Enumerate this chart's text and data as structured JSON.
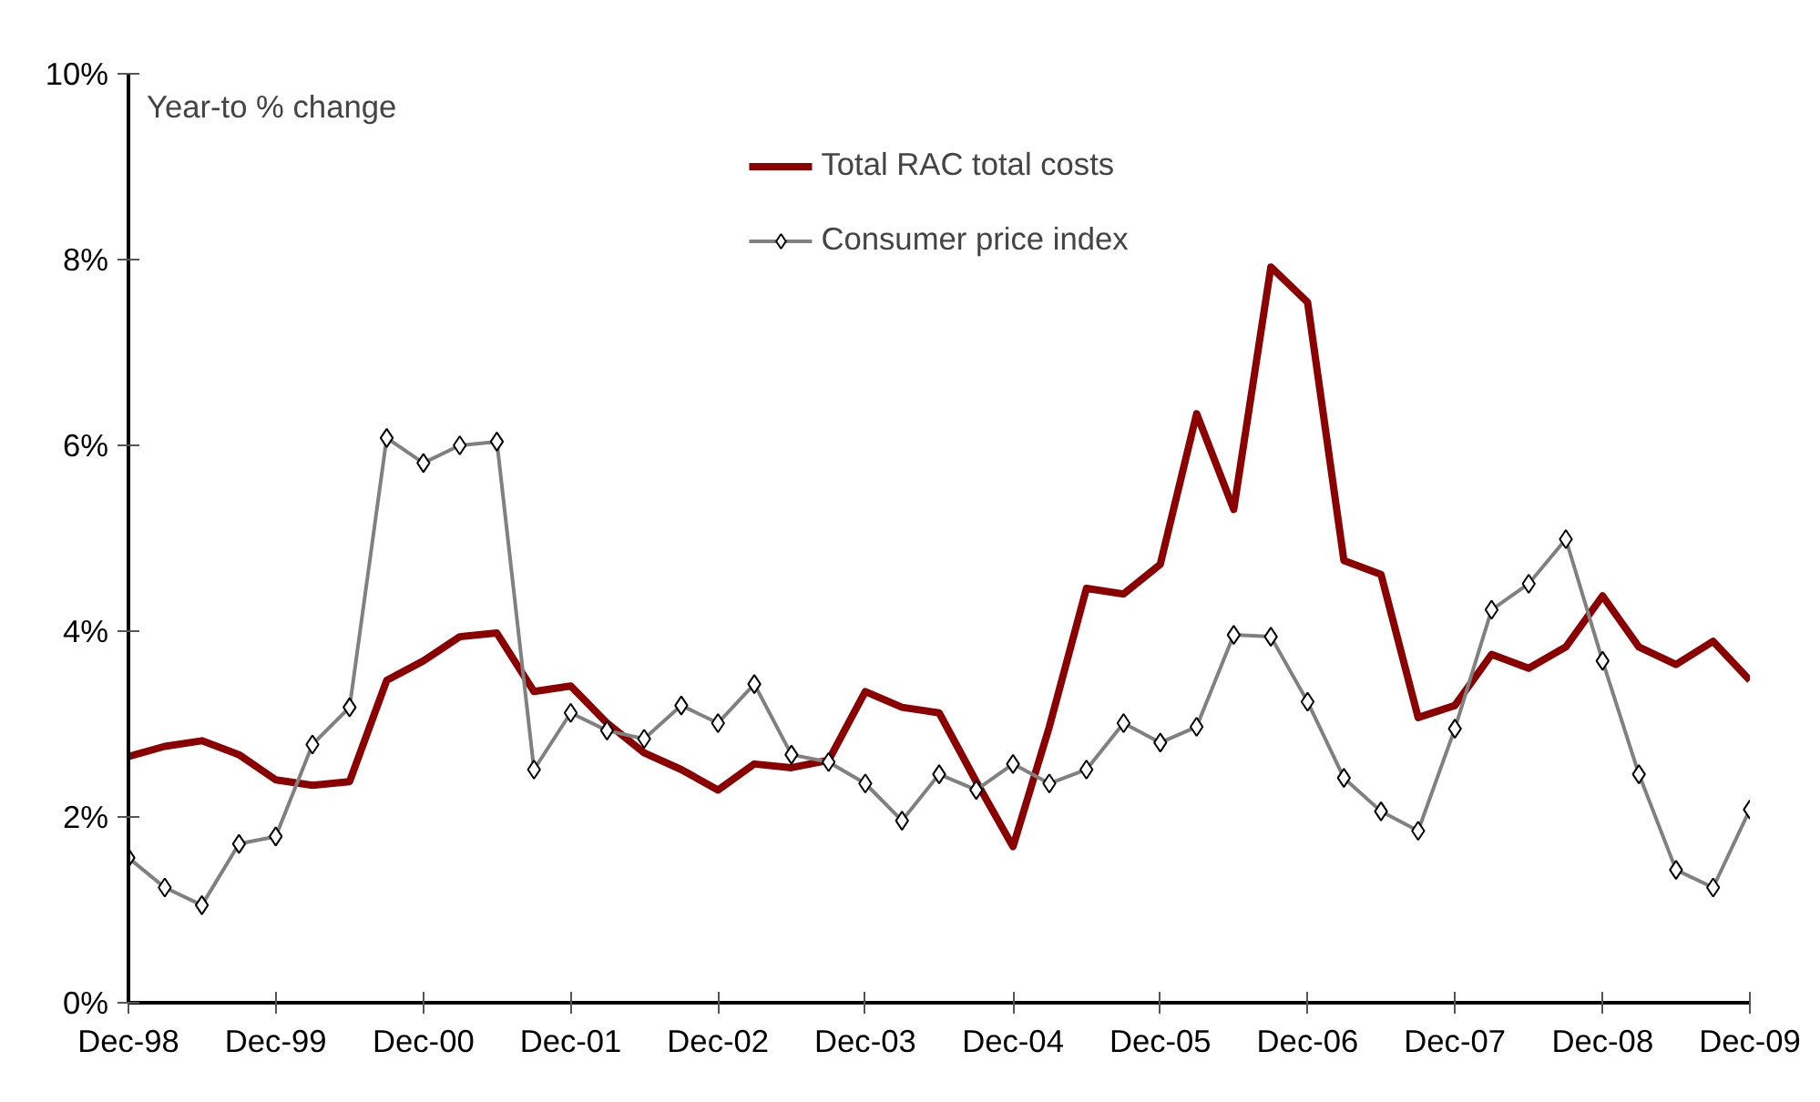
{
  "chart_data": {
    "type": "line",
    "ylabel": "Year-to % change",
    "x": [
      "1998-12",
      "1999-03",
      "1999-06",
      "1999-09",
      "1999-12",
      "2000-03",
      "2000-06",
      "2000-09",
      "2000-12",
      "2001-03",
      "2001-06",
      "2001-09",
      "2001-12",
      "2002-03",
      "2002-06",
      "2002-09",
      "2002-12",
      "2003-03",
      "2003-06",
      "2003-09",
      "2003-12",
      "2004-03",
      "2004-06",
      "2004-09",
      "2004-12",
      "2005-03",
      "2005-06",
      "2005-09",
      "2005-12",
      "2006-03",
      "2006-06",
      "2006-09",
      "2006-12",
      "2007-03",
      "2007-06",
      "2007-09",
      "2007-12",
      "2008-03",
      "2008-06",
      "2008-09",
      "2008-12",
      "2009-03",
      "2009-06",
      "2009-09",
      "2009-12"
    ],
    "series": [
      {
        "name": "Total RAC total costs",
        "color": "#8b0000",
        "marker": "none",
        "values": [
          2.65,
          2.76,
          2.82,
          2.67,
          2.4,
          2.34,
          2.38,
          3.47,
          3.68,
          3.94,
          3.98,
          3.35,
          3.41,
          3.01,
          2.69,
          2.51,
          2.29,
          2.57,
          2.53,
          2.61,
          3.35,
          3.18,
          3.12,
          2.38,
          1.68,
          2.97,
          4.46,
          4.4,
          4.72,
          6.34,
          5.31,
          7.92,
          7.54,
          4.76,
          4.61,
          3.07,
          3.2,
          3.75,
          3.6,
          3.83,
          4.38,
          3.83,
          3.64,
          3.89,
          3.47
        ]
      },
      {
        "name": "Consumer price index",
        "color": "#808080",
        "marker": "diamond",
        "values": [
          1.56,
          1.24,
          1.05,
          1.71,
          1.79,
          2.78,
          3.18,
          6.08,
          5.81,
          6.0,
          6.04,
          2.51,
          3.12,
          2.93,
          2.84,
          3.2,
          3.01,
          3.43,
          2.67,
          2.59,
          2.36,
          1.96,
          2.46,
          2.29,
          2.57,
          2.36,
          2.51,
          3.01,
          2.8,
          2.97,
          3.96,
          3.94,
          3.24,
          2.42,
          2.06,
          1.85,
          2.95,
          4.23,
          4.51,
          4.99,
          3.68,
          2.46,
          1.43,
          1.24,
          2.08
        ]
      }
    ],
    "ylim": [
      0,
      10
    ],
    "yticks": [
      {
        "value": 0,
        "label": "0%"
      },
      {
        "value": 2,
        "label": "2%"
      },
      {
        "value": 4,
        "label": "4%"
      },
      {
        "value": 6,
        "label": "6%"
      },
      {
        "value": 8,
        "label": "8%"
      },
      {
        "value": 10,
        "label": "10%"
      }
    ],
    "xlim": [
      "1998-12",
      "2009-12"
    ],
    "xticks": [
      {
        "value": "1998-12",
        "label": "Dec-98"
      },
      {
        "value": "1999-12",
        "label": "Dec-99"
      },
      {
        "value": "2000-12",
        "label": "Dec-00"
      },
      {
        "value": "2001-12",
        "label": "Dec-01"
      },
      {
        "value": "2002-12",
        "label": "Dec-02"
      },
      {
        "value": "2003-12",
        "label": "Dec-03"
      },
      {
        "value": "2004-12",
        "label": "Dec-04"
      },
      {
        "value": "2005-12",
        "label": "Dec-05"
      },
      {
        "value": "2006-12",
        "label": "Dec-06"
      },
      {
        "value": "2007-12",
        "label": "Dec-07"
      },
      {
        "value": "2008-12",
        "label": "Dec-08"
      },
      {
        "value": "2009-12",
        "label": "Dec-09"
      }
    ],
    "grid": false,
    "legend": "top"
  }
}
